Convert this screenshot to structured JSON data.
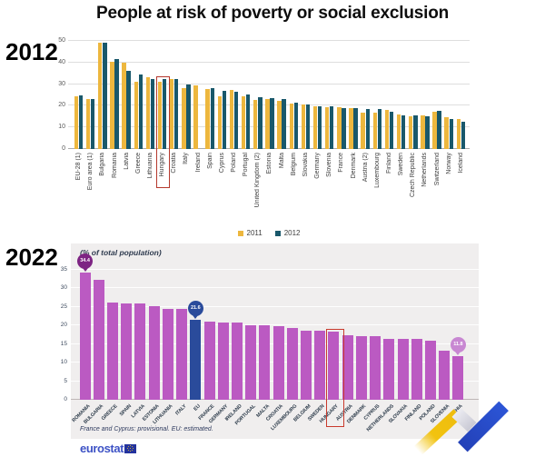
{
  "title": "People at risk of poverty or social exclusion",
  "footer": {
    "logo_text": "eurostat"
  },
  "colors": {
    "bar_2011": "#edb73e",
    "bar_2012": "#19586b",
    "bar_2022": "#bb5ac2",
    "eu_bar": "#2a4b9b",
    "callout_dark_purple": "#7d2483",
    "callout_blue": "#2a4b9b",
    "callout_light_purple": "#c887d2",
    "highlight_box_red": "#c93a2d",
    "panel_background": "#f0eeee"
  },
  "chart_data": [
    {
      "type": "bar",
      "title": "2012",
      "ylabel": "",
      "ylim": [
        0,
        50
      ],
      "yticks": [
        0,
        10,
        20,
        30,
        40,
        50
      ],
      "grid": true,
      "legend_position": "bottom",
      "highlight": "Hungary",
      "categories": [
        "EU-28 (1)",
        "Euro area (1)",
        "Bulgaria",
        "Romania",
        "Latvia",
        "Greece",
        "Lithuania",
        "Hungary",
        "Croatia",
        "Italy",
        "Ireland",
        "Spain",
        "Cyprus",
        "Poland",
        "Portugal",
        "United Kingdom (2)",
        "Estonia",
        "Malta",
        "Belgium",
        "Slovakia",
        "Germany",
        "Slovenia",
        "France",
        "Denmark",
        "Austria (2)",
        "Luxembourg",
        "Finland",
        "Sweden",
        "Czech Republic",
        "Netherlands",
        "Switzerland",
        "Norway",
        "Iceland"
      ],
      "series": [
        {
          "name": "2011",
          "values": [
            24.3,
            23.0,
            49.1,
            40.3,
            40.1,
            31.0,
            33.1,
            31.0,
            32.3,
            28.2,
            29.4,
            27.7,
            24.6,
            27.2,
            24.4,
            22.7,
            23.1,
            22.1,
            21.0,
            20.6,
            19.9,
            19.3,
            19.3,
            18.9,
            16.9,
            16.8,
            17.9,
            16.1,
            15.3,
            15.7,
            17.2,
            14.6,
            13.7
          ]
        },
        {
          "name": "2012",
          "values": [
            24.8,
            23.3,
            49.3,
            41.7,
            36.2,
            34.6,
            32.5,
            32.4,
            32.3,
            29.9,
            null,
            28.2,
            27.1,
            26.7,
            25.3,
            24.1,
            23.4,
            23.1,
            21.6,
            20.5,
            19.6,
            19.6,
            19.1,
            19.0,
            18.5,
            18.4,
            17.2,
            15.6,
            15.4,
            15.0,
            17.5,
            13.8,
            12.7
          ]
        }
      ]
    },
    {
      "type": "bar",
      "title": "2022",
      "subtitle": "(% of total population)",
      "footnote": "France and Cyprus: provisional. EU: estimated.",
      "ylim": [
        0,
        35
      ],
      "yticks": [
        0,
        5,
        10,
        15,
        20,
        25,
        30,
        35
      ],
      "grid": true,
      "legend_position": "none",
      "highlight": "HUNGARY",
      "categories": [
        "ROMANIA",
        "BULGARIA",
        "GREECE",
        "SPAIN",
        "LATVIA",
        "ESTONIA",
        "LITHUANIA",
        "ITALY",
        "EU",
        "FRANCE",
        "GERMANY",
        "IRELAND",
        "PORTUGAL",
        "MALTA",
        "CROATIA",
        "LUXEMBOURG",
        "BELGIUM",
        "SWEDEN",
        "HUNGARY",
        "AUSTRIA",
        "DENMARK",
        "CYPRUS",
        "NETHERLANDS",
        "SLOVAKIA",
        "FINLAND",
        "POLAND",
        "SLOVENIA",
        "CZECHIA"
      ],
      "values": [
        34.4,
        32.2,
        26.3,
        26.0,
        26.0,
        25.2,
        24.6,
        24.4,
        21.6,
        21.1,
        20.9,
        20.7,
        20.1,
        20.1,
        19.9,
        19.4,
        18.7,
        18.6,
        18.4,
        17.5,
        17.2,
        17.1,
        16.5,
        16.5,
        16.3,
        15.9,
        13.3,
        11.8
      ],
      "callouts": [
        {
          "category": "ROMANIA",
          "label": "34.4",
          "color": "#7d2483"
        },
        {
          "category": "EU",
          "label": "21.6",
          "color": "#2a4b9b"
        },
        {
          "category": "CZECHIA",
          "label": "11.8",
          "color": "#c887d2"
        }
      ]
    }
  ]
}
